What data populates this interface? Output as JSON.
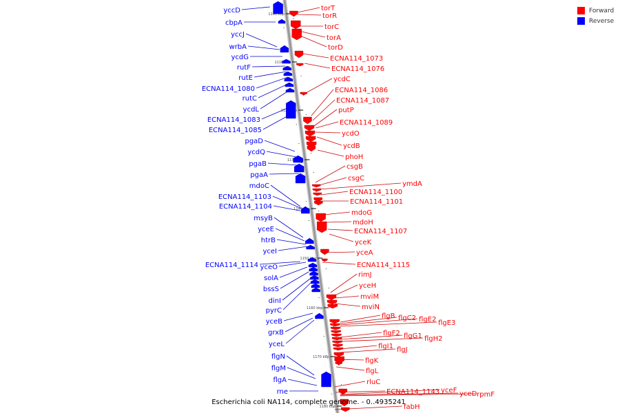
{
  "title": "Escherichia coli NA114, complete genome. - 0..4935241",
  "legend": [
    {
      "label": "Forward",
      "color": "#ff0000"
    },
    {
      "label": "Reverse",
      "color": "#0000ff"
    }
  ],
  "colors": {
    "forward": "#ff0000",
    "reverse": "#0000ff",
    "backbone": "#999999",
    "leader_forward": "#cc0000",
    "leader_reverse": "#0000cc"
  },
  "scale_ticks": [
    "1100 kbp",
    "1110 kbp",
    "1120 kbp",
    "1130 kbp",
    "1140 kbp",
    "1150 kbp",
    "1160 kbp",
    "1170 kbp",
    "1180 kbp"
  ],
  "genes": {
    "forward": [
      "torT",
      "torR",
      "torC",
      "torA",
      "torD",
      "ECNA114_1073",
      "ECNA114_1076",
      "ycdC",
      "ECNA114_1086",
      "ECNA114_1087",
      "putP",
      "ECNA114_1089",
      "ycdO",
      "ycdB",
      "phoH",
      "csgB",
      "csgC",
      "ymdA",
      "ECNA114_1100",
      "ECNA114_1101",
      "mdoG",
      "mdoH",
      "ECNA114_1107",
      "yceK",
      "yceA",
      "ECNA114_1115",
      "rimJ",
      "yceH",
      "mviM",
      "mviN",
      "flgB",
      "flgC2",
      "flgE2",
      "flgE3",
      "flgF2",
      "flgG1",
      "flgH2",
      "flgI1",
      "flgJ",
      "flgK",
      "flgL",
      "rluC",
      "ECNA114_1143",
      "yceF",
      "yceD",
      "rpmF",
      "fabH"
    ],
    "reverse": [
      "yccD",
      "cbpA",
      "yccJ",
      "wrbA",
      "ycdG",
      "rutF",
      "rutE",
      "ECNA114_1080",
      "rutC",
      "ycdL",
      "ECNA114_1083",
      "ECNA114_1085",
      "pgaD",
      "ycdQ",
      "pgaB",
      "pgaA",
      "mdoC",
      "ECNA114_1103",
      "ECNA114_1104",
      "msyB",
      "yceE",
      "htrB",
      "yceI",
      "ECNA114_1114",
      "yceO",
      "solA",
      "bssS",
      "dinI",
      "pyrC",
      "yceB",
      "grxB",
      "yceL",
      "flgN",
      "flgM",
      "flgA",
      "rne"
    ]
  }
}
